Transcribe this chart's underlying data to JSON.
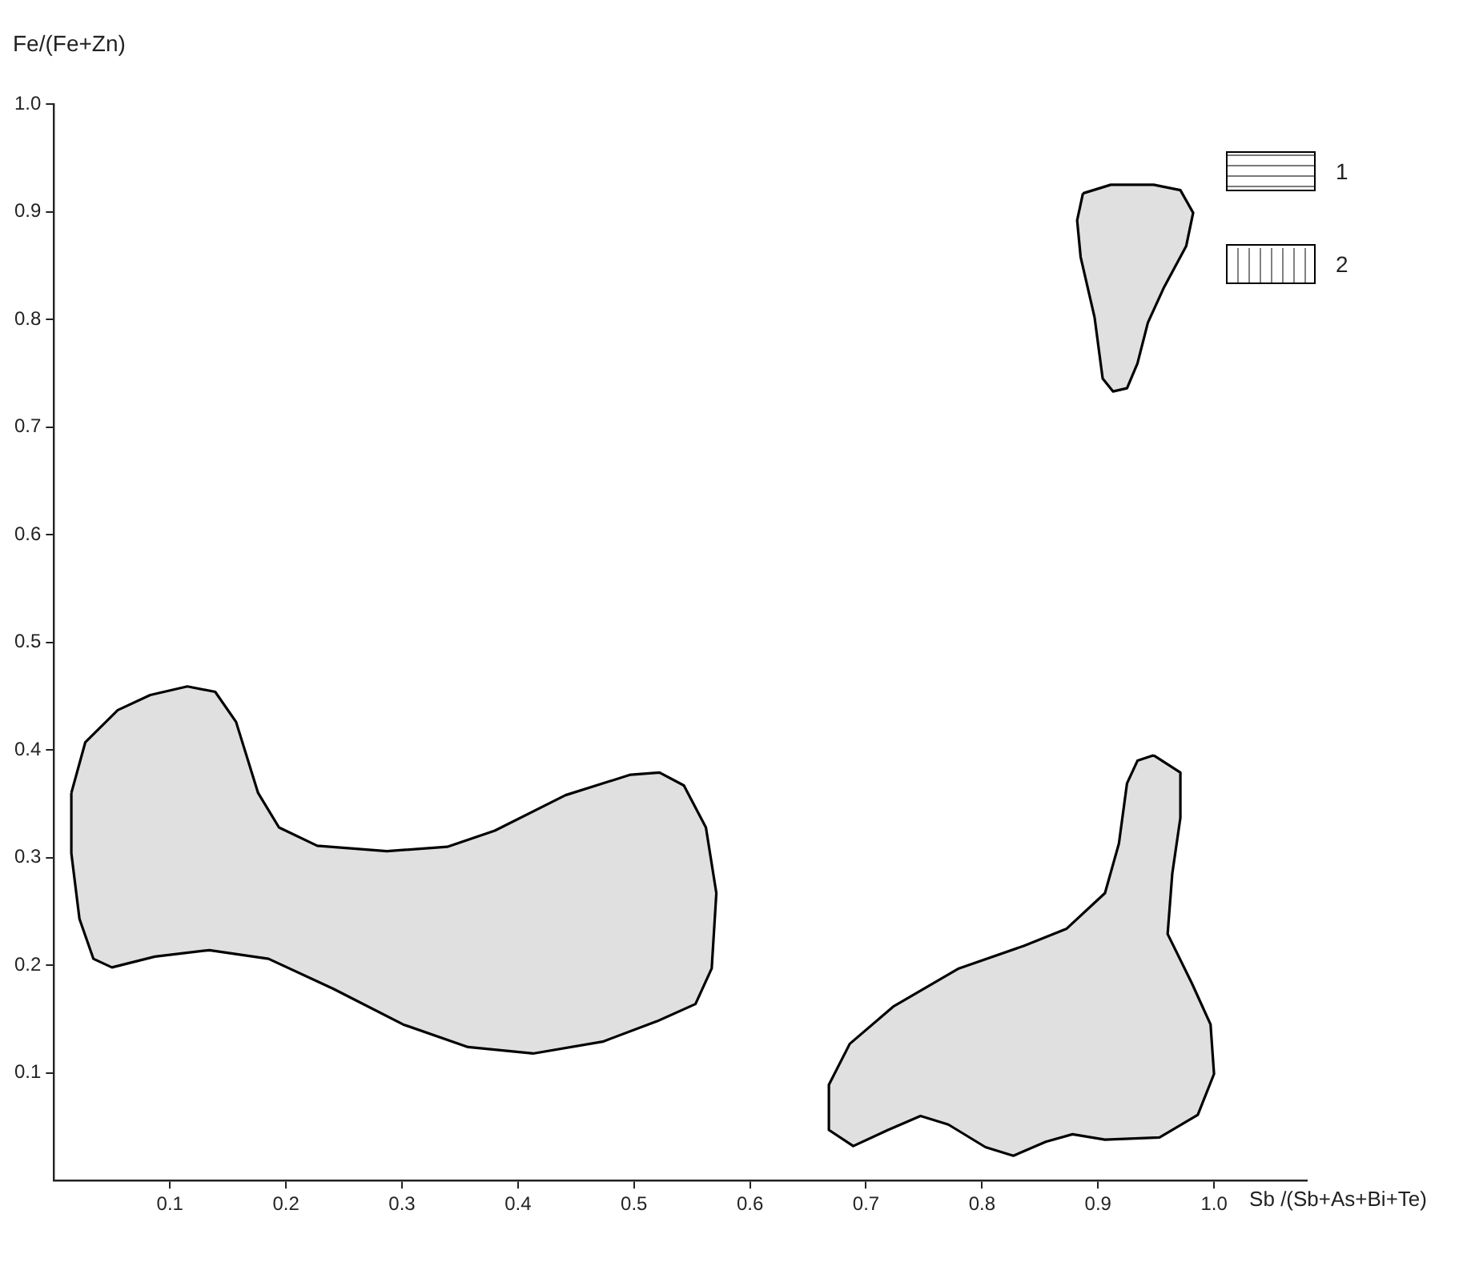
{
  "chart_data": {
    "type": "area",
    "xlabel": "Sb /(Sb+As+Bi+Te)",
    "ylabel": "Fe/(Fe+Zn)",
    "xlim": [
      0,
      1.08
    ],
    "ylim": [
      0,
      1.0
    ],
    "xticks": [
      0.1,
      0.2,
      0.3,
      0.4,
      0.5,
      0.6,
      0.7,
      0.8,
      0.9,
      {
        "value": 1,
        "label": "1.0"
      }
    ],
    "yticks": [
      0.1,
      0.2,
      0.3,
      0.4,
      0.5,
      0.6,
      0.7,
      0.8,
      0.9,
      {
        "value": 1,
        "label": "1.0"
      }
    ],
    "grid": false,
    "legend": "top right",
    "marker": "none",
    "line_style": "solid",
    "series": [
      {
        "name": "1",
        "color": "#000000",
        "x": [
          0.015,
          0.027,
          0.055,
          0.083,
          0.115,
          0.139,
          0.157,
          0.176,
          0.194,
          0.227,
          0.287,
          0.339,
          0.38,
          0.441,
          0.497,
          0.522,
          0.543,
          0.562,
          0.571,
          0.567,
          0.553,
          0.52,
          0.473,
          0.413,
          0.357,
          0.301,
          0.241,
          0.185,
          0.134,
          0.087,
          0.05,
          0.034,
          0.022,
          0.015,
          0.015
        ],
        "values": [
          0.36,
          0.407,
          0.437,
          0.451,
          0.459,
          0.454,
          0.426,
          0.36,
          0.328,
          0.311,
          0.306,
          0.31,
          0.325,
          0.358,
          0.377,
          0.379,
          0.367,
          0.328,
          0.267,
          0.197,
          0.164,
          0.148,
          0.129,
          0.118,
          0.124,
          0.145,
          0.178,
          0.206,
          0.214,
          0.208,
          0.198,
          0.206,
          0.243,
          0.304,
          0.36
        ]
      },
      {
        "name": "2",
        "color": "#000000",
        "x": [
          0.948,
          0.971,
          0.971,
          0.964,
          0.96,
          0.981,
          0.997,
          1.0,
          0.986,
          0.953,
          0.906,
          0.878,
          0.855,
          0.827,
          0.803,
          0.771,
          0.747,
          0.719,
          0.689,
          0.668,
          0.668,
          0.686,
          0.724,
          0.78,
          0.836,
          0.873,
          0.906,
          0.918,
          0.925,
          0.934,
          0.948
        ],
        "values": [
          0.395,
          0.379,
          0.337,
          0.285,
          0.229,
          0.183,
          0.145,
          0.099,
          0.061,
          0.04,
          0.038,
          0.043,
          0.036,
          0.023,
          0.031,
          0.052,
          0.06,
          0.047,
          0.032,
          0.047,
          0.089,
          0.127,
          0.162,
          0.197,
          0.218,
          0.234,
          0.267,
          0.313,
          0.369,
          0.39,
          0.395
        ]
      },
      {
        "color": "#000000",
        "x": [
          0.887,
          0.911,
          0.948,
          0.971,
          0.982,
          0.976,
          0.957,
          0.943,
          0.934,
          0.925,
          0.913,
          0.904,
          0.897,
          0.885,
          0.882,
          0.887
        ],
        "values": [
          0.917,
          0.925,
          0.925,
          0.92,
          0.899,
          0.868,
          0.83,
          0.797,
          0.759,
          0.736,
          0.733,
          0.745,
          0.802,
          0.858,
          0.892,
          0.917
        ]
      }
    ]
  }
}
